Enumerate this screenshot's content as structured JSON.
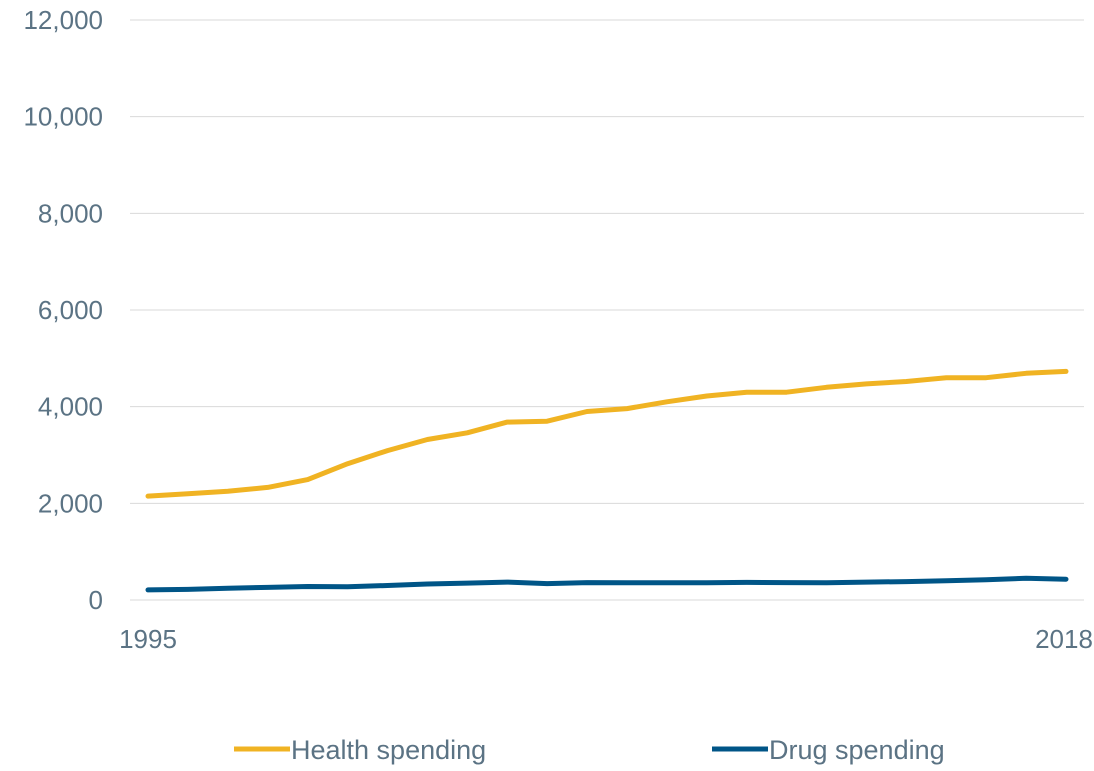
{
  "chart_data": {
    "type": "line",
    "title": "",
    "xlabel": "",
    "ylabel": "",
    "ylim": [
      0,
      12000
    ],
    "y_ticks": [
      "0",
      "2,000",
      "4,000",
      "6,000",
      "8,000",
      "10,000",
      "12,000"
    ],
    "y_tick_values": [
      0,
      2000,
      4000,
      6000,
      8000,
      10000,
      12000
    ],
    "x_tick_labels": [
      "1995",
      "2018"
    ],
    "x": [
      1995,
      1996,
      1997,
      1998,
      1999,
      2000,
      2001,
      2002,
      2003,
      2004,
      2005,
      2006,
      2007,
      2008,
      2009,
      2010,
      2011,
      2012,
      2013,
      2014,
      2015,
      2016,
      2017,
      2018
    ],
    "grid": true,
    "legend_position": "bottom",
    "series": [
      {
        "name": "Health spending",
        "color": "#f0b323",
        "values": [
          2150,
          2200,
          2250,
          2330,
          2490,
          2820,
          3090,
          3320,
          3460,
          3680,
          3700,
          3900,
          3960,
          4100,
          4220,
          4300,
          4300,
          4400,
          4470,
          4520,
          4600,
          4600,
          4690,
          4730
        ]
      },
      {
        "name": "Drug spending",
        "color": "#005587",
        "values": [
          210,
          220,
          245,
          260,
          280,
          275,
          300,
          330,
          350,
          370,
          340,
          360,
          355,
          355,
          355,
          365,
          360,
          355,
          370,
          380,
          400,
          420,
          450,
          430
        ]
      }
    ]
  }
}
